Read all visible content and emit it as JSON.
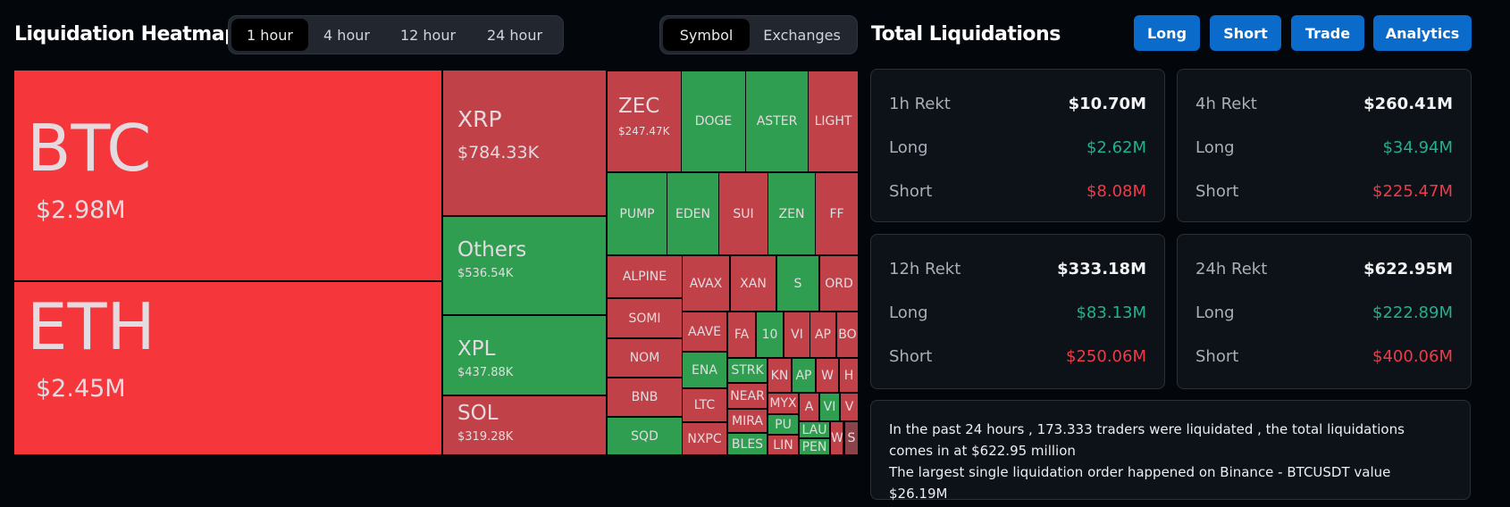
{
  "heatmap": {
    "title": "Liquidation Heatmap",
    "time_tabs": [
      "1 hour",
      "4 hour",
      "12 hour",
      "24 hour"
    ],
    "active_time_tab": "1 hour",
    "group_tabs": [
      "Symbol",
      "Exchanges"
    ],
    "active_group_tab": "Symbol",
    "colors": {
      "dominant_short": "#f5363b",
      "short": "#c04248",
      "long": "#2f9e50",
      "other": "#8c4249"
    },
    "cells": [
      {
        "name": "BTC",
        "value": "$2.98M",
        "side": "dominant_short"
      },
      {
        "name": "ETH",
        "value": "$2.45M",
        "side": "dominant_short"
      },
      {
        "name": "XRP",
        "value": "$784.33K",
        "side": "short"
      },
      {
        "name": "Others",
        "value": "$536.54K",
        "side": "long"
      },
      {
        "name": "XPL",
        "value": "$437.88K",
        "side": "long"
      },
      {
        "name": "SOL",
        "value": "$319.28K",
        "side": "short"
      },
      {
        "name": "ZEC",
        "value": "$247.47K",
        "side": "short"
      },
      {
        "name": "DOGE",
        "side": "long"
      },
      {
        "name": "ASTER",
        "side": "long"
      },
      {
        "name": "LIGHT",
        "side": "short"
      },
      {
        "name": "PUMP",
        "side": "long"
      },
      {
        "name": "EDEN",
        "side": "long"
      },
      {
        "name": "SUI",
        "side": "short"
      },
      {
        "name": "ZEN",
        "side": "long"
      },
      {
        "name": "FF",
        "side": "short"
      },
      {
        "name": "ALPINE",
        "side": "short"
      },
      {
        "name": "SOMI",
        "side": "short"
      },
      {
        "name": "NOM",
        "side": "short"
      },
      {
        "name": "BNB",
        "side": "short"
      },
      {
        "name": "SQD",
        "side": "long"
      },
      {
        "name": "AVAX",
        "side": "short"
      },
      {
        "name": "XAN",
        "side": "short"
      },
      {
        "name": "S",
        "side": "long"
      },
      {
        "name": "ORD",
        "side": "short"
      },
      {
        "name": "AAVE",
        "side": "short"
      },
      {
        "name": "ENA",
        "side": "long"
      },
      {
        "name": "LTC",
        "side": "short"
      },
      {
        "name": "NXPC",
        "side": "short"
      },
      {
        "name": "FA",
        "side": "short"
      },
      {
        "name": "10",
        "side": "long"
      },
      {
        "name": "VI",
        "side": "short"
      },
      {
        "name": "AP",
        "side": "short"
      },
      {
        "name": "BO",
        "side": "short"
      },
      {
        "name": "STRK",
        "side": "long"
      },
      {
        "name": "NEAR",
        "side": "short"
      },
      {
        "name": "MIRA",
        "side": "short"
      },
      {
        "name": "BLES",
        "side": "long"
      },
      {
        "name": "KN",
        "side": "short"
      },
      {
        "name": "AP",
        "side": "long"
      },
      {
        "name": "W",
        "side": "short"
      },
      {
        "name": "H",
        "side": "short"
      },
      {
        "name": "MYX",
        "side": "short"
      },
      {
        "name": "PU",
        "side": "long"
      },
      {
        "name": "LIN",
        "side": "short"
      },
      {
        "name": "A",
        "side": "short"
      },
      {
        "name": "VI",
        "side": "long"
      },
      {
        "name": "V",
        "side": "short"
      },
      {
        "name": "LAU",
        "side": "long"
      },
      {
        "name": "PEN",
        "side": "long"
      },
      {
        "name": "W",
        "side": "short"
      },
      {
        "name": "S",
        "side": "other"
      }
    ]
  },
  "totals": {
    "title": "Total Liquidations",
    "buttons": [
      "Long",
      "Short",
      "Trade",
      "Analytics"
    ],
    "cards": [
      {
        "label": "1h Rekt",
        "total": "$10.70M",
        "long_label": "Long",
        "long": "$2.62M",
        "short_label": "Short",
        "short": "$8.08M"
      },
      {
        "label": "4h Rekt",
        "total": "$260.41M",
        "long_label": "Long",
        "long": "$34.94M",
        "short_label": "Short",
        "short": "$225.47M"
      },
      {
        "label": "12h Rekt",
        "total": "$333.18M",
        "long_label": "Long",
        "long": "$83.13M",
        "short_label": "Short",
        "short": "$250.06M"
      },
      {
        "label": "24h Rekt",
        "total": "$622.95M",
        "long_label": "Long",
        "long": "$222.89M",
        "short_label": "Short",
        "short": "$400.06M"
      }
    ],
    "summary_line1": "In the past 24 hours , 173.333 traders were liquidated , the total liquidations comes in at $622.95 million",
    "summary_line2": "The largest single liquidation order happened on Binance - BTCUSDT value $26.19M"
  }
}
